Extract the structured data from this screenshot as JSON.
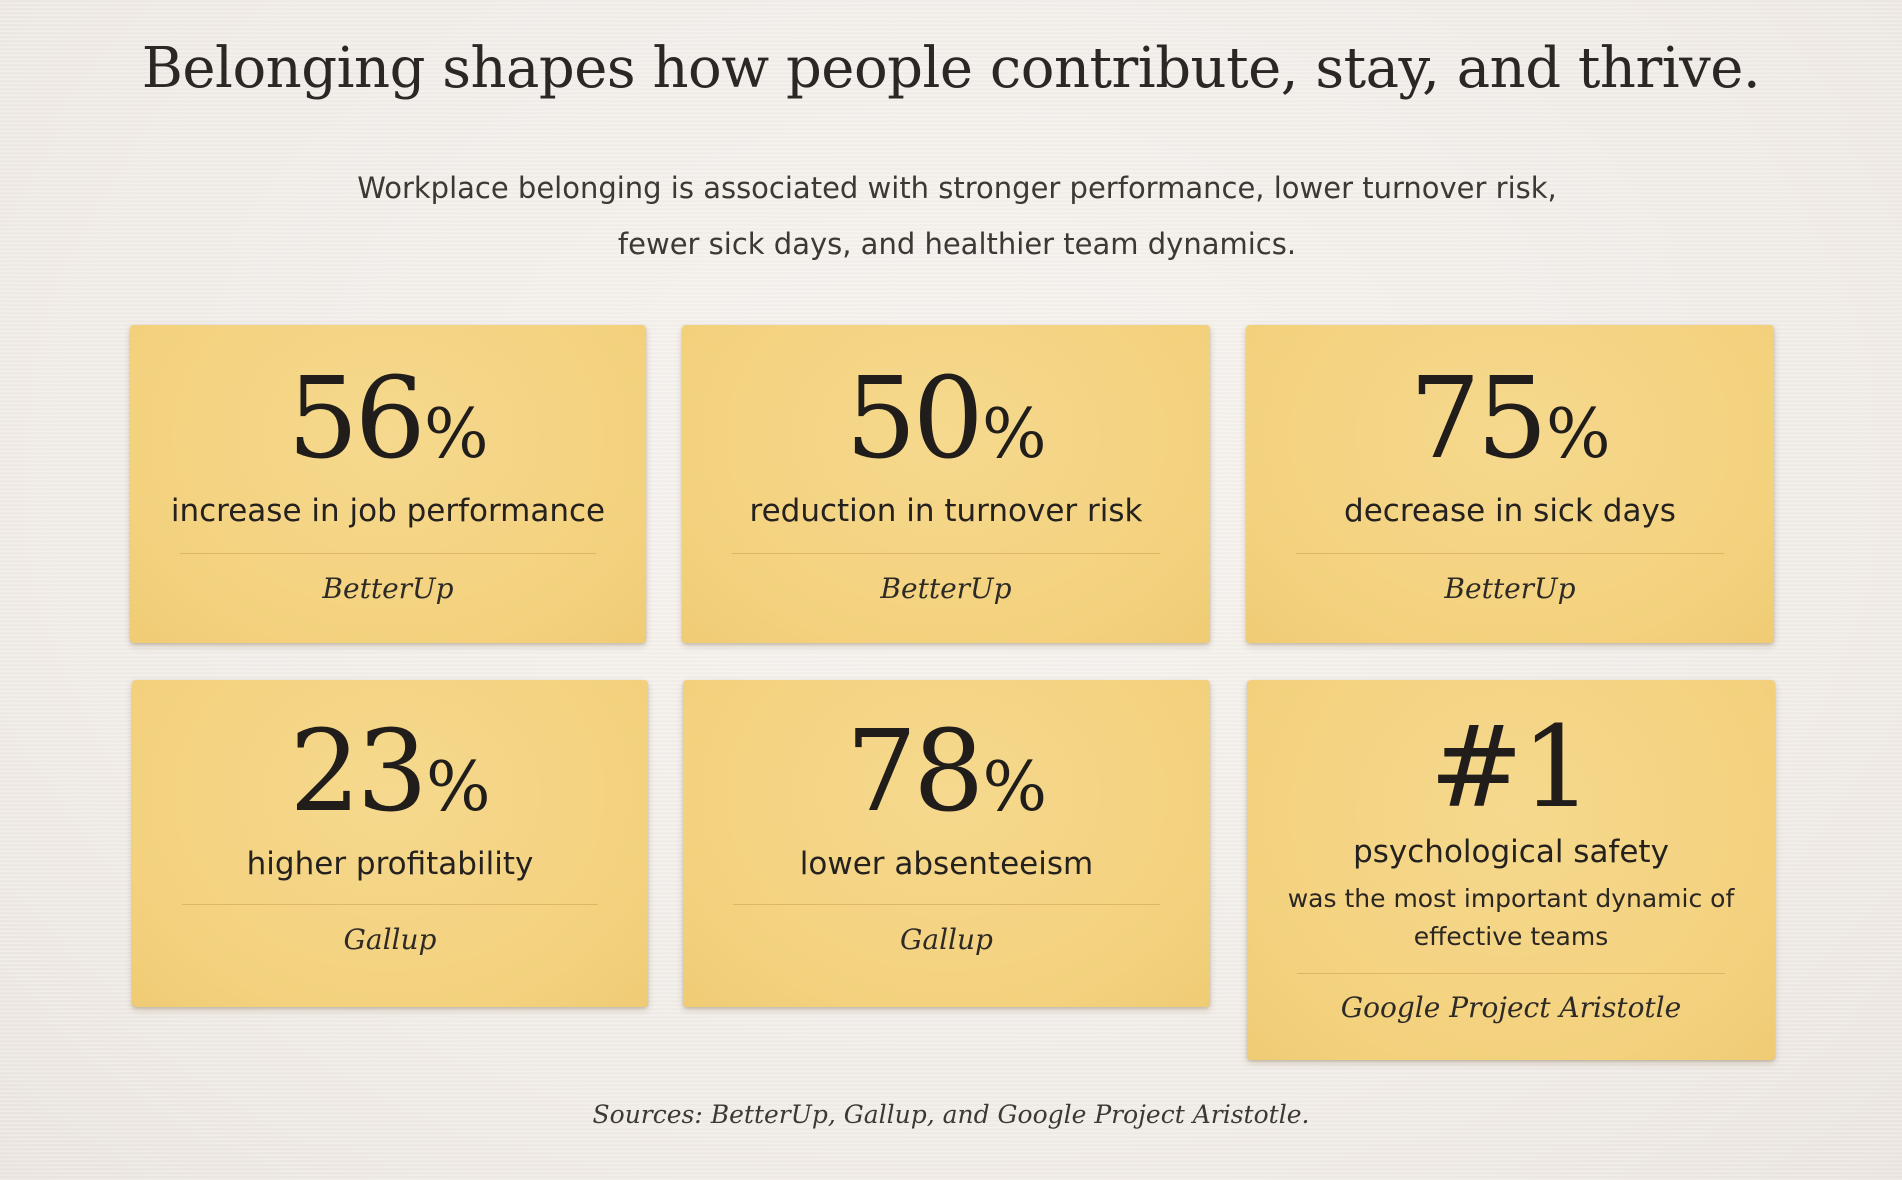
{
  "headline": "Belonging shapes how people contribute, stay, and thrive.",
  "subtitle": "Workplace belonging is associated with stronger performance, lower turnover risk, fewer sick days, and healthier team dynamics.",
  "cards": [
    {
      "number": "56",
      "unit": "%",
      "label": "increase in job performance",
      "source": "BetterUp"
    },
    {
      "number": "50",
      "unit": "%",
      "label": "reduction in turnover risk",
      "source": "BetterUp"
    },
    {
      "number": "75",
      "unit": "%",
      "label": "decrease in sick days",
      "source": "BetterUp"
    },
    {
      "number": "23",
      "unit": "%",
      "label": "higher profitability",
      "source": "Gallup"
    },
    {
      "number": "78",
      "unit": "%",
      "label": "lower absenteeism",
      "source": "Gallup"
    },
    {
      "number": "#1",
      "unit": "",
      "label": "psychological safety",
      "detail": "was the most important dynamic of effective teams",
      "source": "Google Project Aristotle"
    }
  ],
  "footer": "Sources: BetterUp, Gallup, and Google Project Aristotle.",
  "colors": {
    "background": "#f3efeb",
    "card": "#f4d483",
    "text": "#2b2825"
  }
}
